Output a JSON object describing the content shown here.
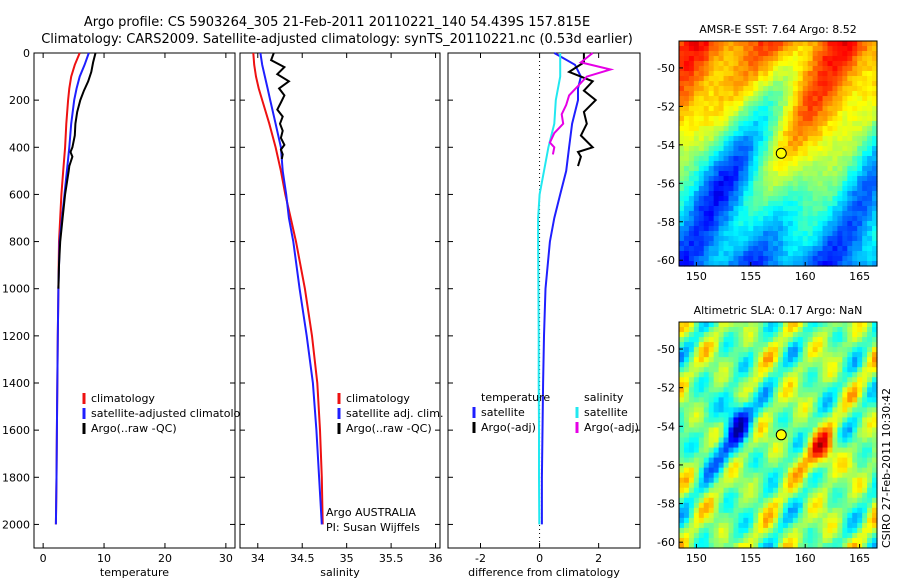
{
  "header": {
    "line1": "Argo profile: CS 5903264_305 21-Feb-2011 20110221_140 54.439S 157.815E",
    "line2": "Climatology: CARS2009. Satellite-adjusted climatology: synTS_20110221.nc (0.53d earlier)"
  },
  "side_stamp": "CSIRO 27-Feb-2011 10:30:42",
  "colors": {
    "climatology": "#ee1111",
    "satellite": "#1f1fff",
    "argo": "#000000",
    "salinity_satellite": "#22e8f0",
    "salinity_argo": "#e600e6",
    "temperature_satellite": "#1f1fff",
    "temperature_argo": "#000000"
  },
  "chart_data": [
    {
      "type": "line",
      "name": "temperature profile",
      "xlabel": "temperature",
      "ylabel": "",
      "xlim": [
        -1.5,
        31.5
      ],
      "ylim": [
        2100,
        0
      ],
      "xticks": [
        0,
        10,
        20,
        30
      ],
      "yticks": [
        0,
        200,
        400,
        600,
        800,
        1000,
        1200,
        1400,
        1600,
        1800,
        2000
      ],
      "legend": {
        "placement": "lower-right",
        "entries": [
          "climatology",
          "satellite-adjusted climatology",
          "Argo(..raw -QC)"
        ]
      },
      "series": [
        {
          "name": "climatology",
          "color_key": "climatology",
          "depth": [
            0,
            50,
            100,
            150,
            200,
            300,
            400,
            500,
            600,
            700,
            800,
            1000,
            1200,
            1500,
            1800,
            2000
          ],
          "values": [
            6.0,
            5.2,
            4.6,
            4.3,
            4.1,
            3.8,
            3.6,
            3.3,
            3.0,
            2.8,
            2.6,
            2.5,
            2.4,
            2.3,
            2.2,
            2.1
          ]
        },
        {
          "name": "satellite-adjusted climatology",
          "color_key": "satellite",
          "depth": [
            0,
            50,
            100,
            150,
            200,
            300,
            400,
            500,
            600,
            700,
            800,
            1000,
            1200,
            1500,
            1800,
            2000
          ],
          "values": [
            7.5,
            6.8,
            6.0,
            5.5,
            5.1,
            4.6,
            4.3,
            3.9,
            3.5,
            3.1,
            2.7,
            2.5,
            2.4,
            2.3,
            2.2,
            2.1
          ]
        },
        {
          "name": "Argo(..raw -QC)",
          "color_key": "argo",
          "depth": [
            0,
            40,
            80,
            120,
            160,
            200,
            250,
            300,
            350,
            400,
            420,
            440,
            480,
            500,
            550,
            600,
            700,
            800,
            900,
            1000
          ],
          "values": [
            8.6,
            8.2,
            7.9,
            7.4,
            6.7,
            6.1,
            5.6,
            5.3,
            5.2,
            4.8,
            4.5,
            4.8,
            4.3,
            4.2,
            3.9,
            3.6,
            3.2,
            2.8,
            2.6,
            2.5
          ]
        }
      ]
    },
    {
      "type": "line",
      "name": "salinity profile",
      "xlabel": "salinity",
      "ylabel": "",
      "xlim": [
        33.8,
        36.05
      ],
      "ylim": [
        2100,
        0
      ],
      "xticks": [
        34,
        34.5,
        35,
        35.5,
        36
      ],
      "xticklabels": [
        "34",
        "34.5",
        "35",
        "35.5",
        "36"
      ],
      "legend": {
        "placement": "lower-right",
        "entries": [
          "climatology",
          "satellite adj. clim.",
          "Argo(..raw -QC)"
        ]
      },
      "annotations": [
        "Argo AUSTRALIA",
        "PI: Susan Wijffels"
      ],
      "series": [
        {
          "name": "climatology",
          "color_key": "climatology",
          "depth": [
            0,
            50,
            100,
            150,
            200,
            300,
            400,
            500,
            600,
            700,
            800,
            1000,
            1200,
            1400,
            1600,
            1800,
            2000
          ],
          "values": [
            33.95,
            33.96,
            33.98,
            34.01,
            34.05,
            34.13,
            34.2,
            34.26,
            34.31,
            34.37,
            34.43,
            34.53,
            34.61,
            34.67,
            34.7,
            34.72,
            34.73
          ]
        },
        {
          "name": "satellite adj. clim.",
          "color_key": "satellite",
          "depth": [
            0,
            50,
            100,
            150,
            200,
            300,
            400,
            500,
            600,
            700,
            800,
            1000,
            1200,
            1400,
            1600,
            1800,
            2000
          ],
          "values": [
            34.03,
            34.05,
            34.08,
            34.11,
            34.14,
            34.2,
            34.26,
            34.28,
            34.32,
            34.35,
            34.4,
            34.47,
            34.55,
            34.62,
            34.66,
            34.69,
            34.72
          ]
        },
        {
          "name": "Argo(..raw -QC)",
          "color_key": "argo",
          "depth": [
            0,
            30,
            60,
            90,
            120,
            150,
            180,
            210,
            240,
            270,
            300,
            330,
            360,
            390,
            410,
            430,
            450
          ],
          "values": [
            34.18,
            34.15,
            34.3,
            34.22,
            34.35,
            34.24,
            34.3,
            34.26,
            34.22,
            34.28,
            34.25,
            34.28,
            34.26,
            34.3,
            34.26,
            34.28,
            34.27
          ]
        }
      ]
    },
    {
      "type": "line",
      "name": "difference profile",
      "xlabel": "difference from climatology",
      "ylabel": "",
      "xlim": [
        -3.1,
        3.4
      ],
      "ylim": [
        2100,
        0
      ],
      "xticks": [
        -2,
        0,
        2
      ],
      "zero_line": "dotted",
      "legend": {
        "placement": "lower-center",
        "columns": [
          {
            "title": "temperature",
            "entries": [
              "satellite",
              "Argo(-adj)"
            ]
          },
          {
            "title": "salinity",
            "entries": [
              "satellite",
              "Argo(-adj)"
            ]
          }
        ]
      },
      "series": [
        {
          "name": "temperature satellite",
          "color_key": "temperature_satellite",
          "depth": [
            0,
            50,
            100,
            150,
            200,
            300,
            400,
            500,
            600,
            700,
            800,
            1000,
            1200,
            1400,
            1600,
            1800,
            2000
          ],
          "values": [
            0.5,
            1.2,
            1.4,
            1.3,
            1.3,
            1.1,
            1.0,
            0.9,
            0.7,
            0.5,
            0.35,
            0.2,
            0.15,
            0.12,
            0.1,
            0.08,
            0.08
          ]
        },
        {
          "name": "temperature Argo(-adj)",
          "color_key": "temperature_argo",
          "depth": [
            0,
            40,
            80,
            120,
            160,
            200,
            250,
            300,
            350,
            400,
            420,
            440,
            480
          ],
          "values": [
            1.5,
            1.5,
            1.0,
            1.8,
            1.5,
            1.9,
            1.5,
            1.6,
            1.4,
            1.8,
            1.3,
            1.4,
            1.3
          ]
        },
        {
          "name": "salinity satellite",
          "color_key": "salinity_satellite",
          "depth": [
            0,
            100,
            200,
            300,
            400,
            500,
            600,
            700,
            800,
            1000,
            1200,
            1400,
            1600,
            1800,
            2000
          ],
          "values": [
            0.7,
            0.7,
            0.55,
            0.5,
            0.3,
            0.15,
            0.0,
            -0.05,
            -0.05,
            -0.04,
            -0.03,
            -0.03,
            -0.02,
            -0.02,
            -0.01
          ]
        },
        {
          "name": "salinity Argo(-adj)",
          "color_key": "salinity_argo",
          "depth": [
            0,
            40,
            70,
            100,
            140,
            180,
            220,
            260,
            300,
            340,
            380,
            400,
            430
          ],
          "values": [
            1.8,
            1.4,
            2.4,
            1.6,
            1.3,
            1.0,
            0.9,
            0.75,
            0.8,
            0.5,
            0.35,
            0.5,
            0.45
          ]
        }
      ]
    },
    {
      "type": "heatmap",
      "name": "sst map",
      "title": "AMSR-E SST: 7.64 Argo: 8.52",
      "xlim": [
        148.4,
        166.6
      ],
      "ylim": [
        -60.3,
        -48.6
      ],
      "xticks": [
        150,
        155,
        160,
        165
      ],
      "yticks": [
        -50,
        -52,
        -54,
        -56,
        -58,
        -60
      ],
      "marker": {
        "lon": 157.8,
        "lat": -54.44
      },
      "field": "sst"
    },
    {
      "type": "heatmap",
      "name": "sla map",
      "title": "Altimetric SLA: 0.17 Argo: NaN",
      "xlim": [
        148.4,
        166.6
      ],
      "ylim": [
        -60.3,
        -48.6
      ],
      "xticks": [
        150,
        155,
        160,
        165
      ],
      "yticks": [
        -50,
        -52,
        -54,
        -56,
        -58,
        -60
      ],
      "marker": {
        "lon": 157.8,
        "lat": -54.44
      },
      "field": "sla"
    }
  ]
}
